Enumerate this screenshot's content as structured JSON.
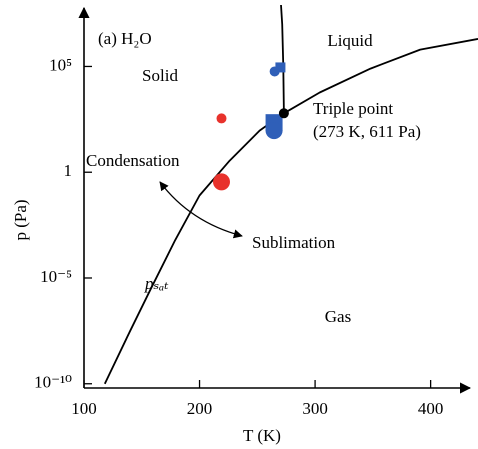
{
  "chart_data": {
    "type": "line",
    "xlabel": "T (K)",
    "ylabel": "p (Pa)",
    "xlim": [
      100,
      441
    ],
    "ylim": [
      6.3e-11,
      100000000.0
    ],
    "log_y": true,
    "xticks": [
      100,
      200,
      300,
      400
    ],
    "yticks": [
      {
        "value": 1e-10,
        "label": "10⁻¹⁰"
      },
      {
        "value": 1e-05,
        "label": "10⁻⁵"
      },
      1,
      {
        "value": 100000,
        "label": "10⁵"
      }
    ],
    "series": [
      {
        "name": "pₛₐₜ",
        "color": "#000000",
        "x": [
          118,
          140,
          157,
          179,
          200,
          226,
          252,
          273,
          304,
          348,
          391,
          441
        ],
        "values": [
          1e-10,
          3.2e-08,
          2.5e-06,
          0.00063,
          0.079,
          3.5,
          93,
          611,
          5900,
          79000,
          630000,
          2000000
        ]
      },
      {
        "color": "#000000",
        "x": [
          273,
          272.5,
          271.5,
          270.5
        ],
        "values": [
          611,
          100000,
          10000000,
          80000000
        ]
      }
    ],
    "points": [
      {
        "x": 219,
        "y": 350,
        "color": "#e8322c",
        "marker": "circle",
        "size": "small"
      },
      {
        "x": 219,
        "y": 0.35,
        "color": "#e8322c",
        "marker": "circle",
        "size": "large"
      },
      {
        "x": 270,
        "y": 90000,
        "color": "#2f5fb8",
        "marker": "square",
        "size": "small"
      },
      {
        "x": 265,
        "y": 58000,
        "color": "#2f5fb8",
        "marker": "circle",
        "size": "small"
      },
      {
        "x": 264.5,
        "y": 220,
        "color": "#2f5fb8",
        "marker": "square",
        "size": "large"
      },
      {
        "x": 264.5,
        "y": 93,
        "color": "#2f5fb8",
        "marker": "circle",
        "size": "large"
      },
      {
        "x": 273,
        "y": 611,
        "color": "#000000",
        "marker": "circle",
        "size": "small"
      }
    ],
    "annotations": [
      "(a) H₂O",
      "Solid",
      "Liquid",
      "Gas",
      "Triple point",
      "(273 K, 611 Pa)",
      "Condensation",
      "Sublimation"
    ]
  }
}
